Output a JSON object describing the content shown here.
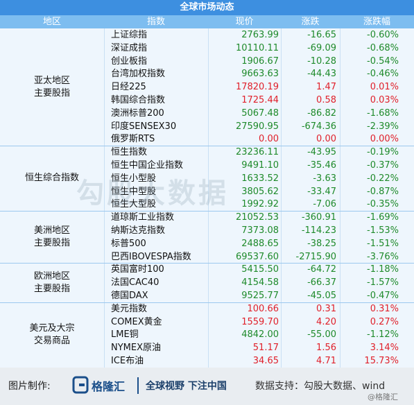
{
  "header": {
    "title": "全球市场动态"
  },
  "table": {
    "columns": [
      "地区",
      "指数",
      "现价",
      "涨跌",
      "涨跌幅"
    ],
    "up_color": "#e0202a",
    "down_color": "#1e8a2a",
    "groups": [
      {
        "region": [
          "亚太地区",
          "主要股指"
        ],
        "rows": [
          [
            "上证综指",
            "2763.99",
            "-16.65",
            "-0.60%"
          ],
          [
            "深证成指",
            "10110.11",
            "-69.09",
            "-0.68%"
          ],
          [
            "创业板指",
            "1906.67",
            "-10.28",
            "-0.54%"
          ],
          [
            "台湾加权指数",
            "9663.63",
            "-44.43",
            "-0.46%"
          ],
          [
            "日经225",
            "17820.19",
            "1.47",
            "0.01%"
          ],
          [
            "韩国综合指数",
            "1725.44",
            "0.58",
            "0.03%"
          ],
          [
            "澳洲标普200",
            "5067.48",
            "-86.82",
            "-1.68%"
          ],
          [
            "印度SENSEX30",
            "27590.95",
            "-674.36",
            "-2.39%"
          ],
          [
            "俄罗斯RTS",
            "0.00",
            "0.00",
            "0.00%"
          ]
        ]
      },
      {
        "region": [
          "恒生综合指数"
        ],
        "rows": [
          [
            "恒生指数",
            "23236.11",
            "-43.95",
            "-0.19%"
          ],
          [
            "恒生中国企业指数",
            "9491.10",
            "-35.46",
            "-0.37%"
          ],
          [
            "恒生小型股",
            "1633.52",
            "-3.63",
            "-0.22%"
          ],
          [
            "恒生中型股",
            "3805.62",
            "-33.47",
            "-0.87%"
          ],
          [
            "恒生大型股",
            "1992.92",
            "-7.06",
            "-0.35%"
          ]
        ]
      },
      {
        "region": [
          "美洲地区",
          "主要股指"
        ],
        "rows": [
          [
            "道琼斯工业指数",
            "21052.53",
            "-360.91",
            "-1.69%"
          ],
          [
            "纳斯达克指数",
            "7373.08",
            "-114.23",
            "-1.53%"
          ],
          [
            "标普500",
            "2488.65",
            "-38.25",
            "-1.51%"
          ],
          [
            "巴西IBOVESPA指数",
            "69537.60",
            "-2715.90",
            "-3.76%"
          ]
        ]
      },
      {
        "region": [
          "欧洲地区",
          "主要股指"
        ],
        "rows": [
          [
            "英国富时100",
            "5415.50",
            "-64.72",
            "-1.18%"
          ],
          [
            "法国CAC40",
            "4154.58",
            "-66.37",
            "-1.57%"
          ],
          [
            "德国DAX",
            "9525.77",
            "-45.05",
            "-0.47%"
          ]
        ]
      },
      {
        "region": [
          "美元及大宗",
          "交易商品"
        ],
        "rows": [
          [
            "美元指数",
            "100.66",
            "0.31",
            "0.31%"
          ],
          [
            "COMEX黄金",
            "1559.70",
            "4.20",
            "0.27%"
          ],
          [
            "LME铜",
            "4842.00",
            "-55.00",
            "-1.12%"
          ],
          [
            "NYMEX原油",
            "51.17",
            "1.56",
            "3.14%"
          ],
          [
            "ICE布油",
            "34.65",
            "4.71",
            "15.73%"
          ]
        ]
      }
    ]
  },
  "watermark": "勾股大数据",
  "footer": {
    "made_by": "图片制作:",
    "brand": "格隆汇",
    "slogan": "全球视野 下注中国",
    "data_source": "数据支持：勾股大数据、wind",
    "signature": "@格隆汇"
  }
}
